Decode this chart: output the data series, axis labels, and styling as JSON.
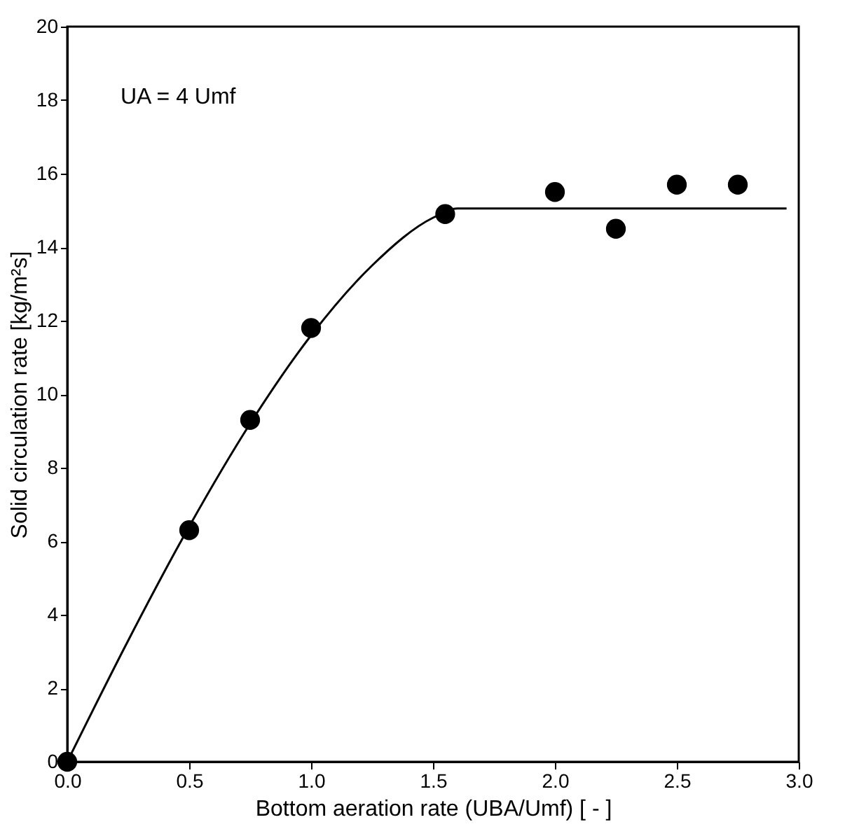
{
  "chart_data": {
    "type": "scatter",
    "xlabel": "Bottom aeration rate (UBA/Umf) [ - ]",
    "ylabel": "Solid circulation rate [kg/m²s]",
    "annotations": [
      "UA = 4 Umf"
    ],
    "xlim": [
      0,
      3
    ],
    "ylim": [
      0,
      20
    ],
    "xticks": [
      {
        "value": 0,
        "label": "0.0"
      },
      0.5,
      {
        "value": 1,
        "label": "1.0"
      },
      1.5,
      {
        "value": 2,
        "label": "2.0"
      },
      2.5,
      {
        "value": 3,
        "label": "3.0"
      }
    ],
    "yticks": [
      0,
      2,
      4,
      6,
      8,
      10,
      12,
      14,
      16,
      18,
      20
    ],
    "grid": false,
    "marker": "circle",
    "series": [
      {
        "color": "#000000",
        "x": [
          0,
          0.5,
          0.75,
          1.0,
          1.55,
          2.0,
          2.25,
          2.5,
          2.75
        ],
        "values": [
          0,
          6.3,
          9.3,
          11.8,
          14.9,
          15.5,
          14.5,
          15.7,
          15.7
        ]
      },
      {
        "type": "line",
        "color": "#000000",
        "line_style": "solid",
        "marker": "none",
        "x": [
          0,
          0.25,
          0.5,
          0.75,
          1.0,
          1.25,
          1.5,
          1.6,
          2.95
        ],
        "values": [
          0,
          3.3,
          6.4,
          9.2,
          11.6,
          13.5,
          14.8,
          15.05,
          15.05
        ]
      }
    ]
  }
}
